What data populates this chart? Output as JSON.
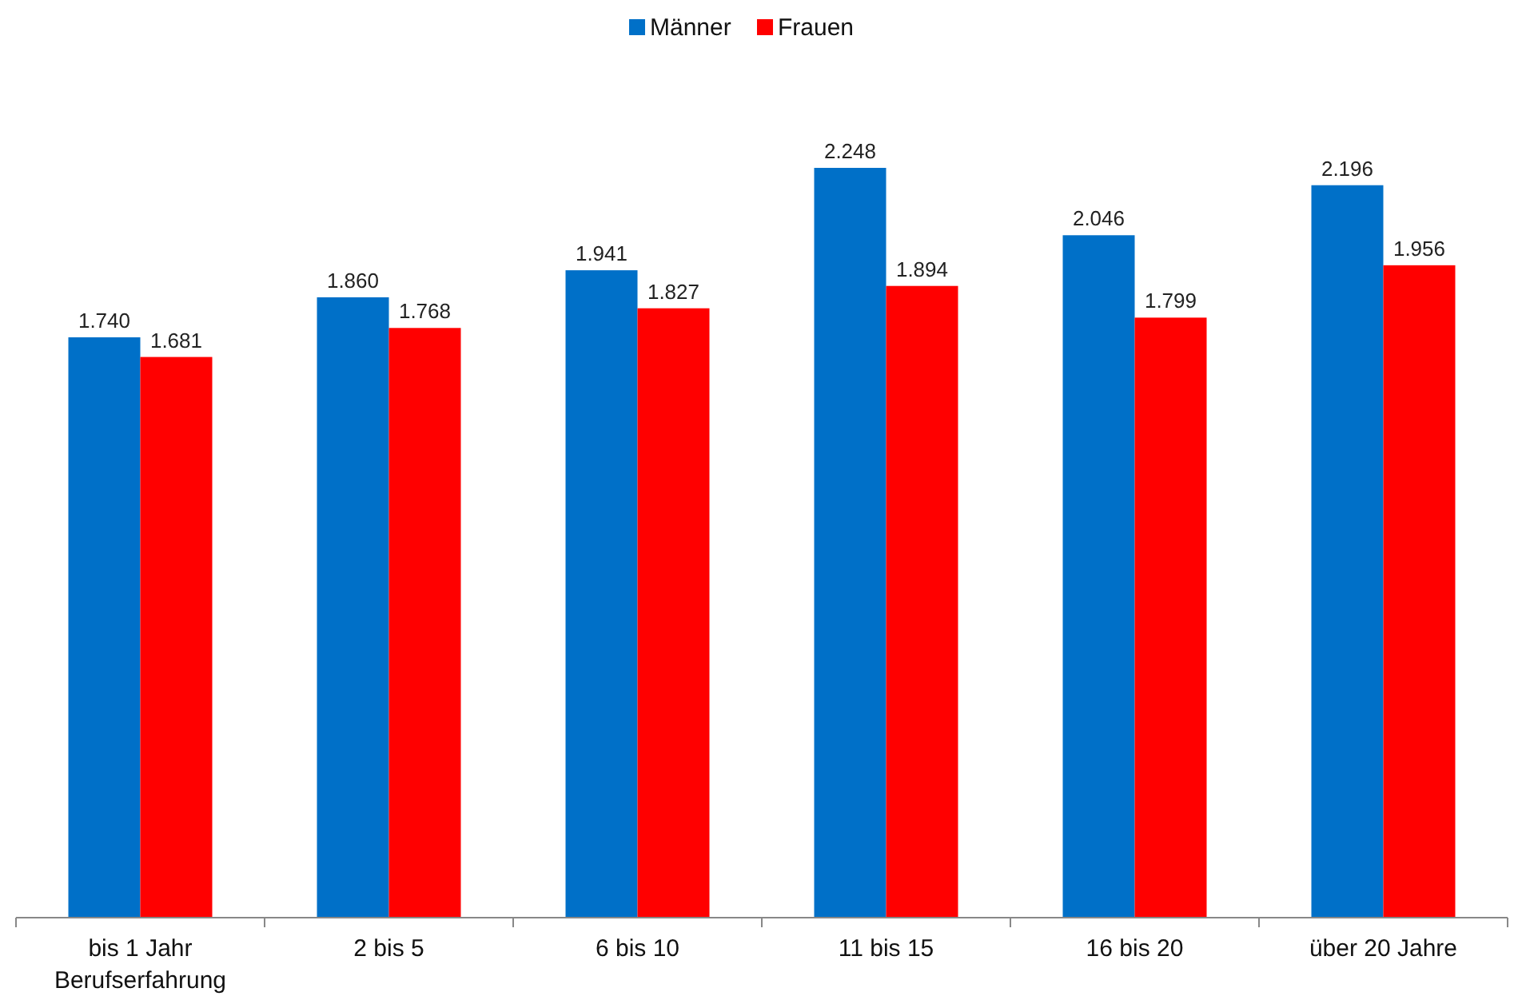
{
  "chart_data": {
    "type": "bar",
    "categories": [
      "bis 1 Jahr\nBerufserfahrung",
      "2 bis 5",
      "6 bis 10",
      "11 bis 15",
      "16 bis 20",
      "über 20 Jahre"
    ],
    "series": [
      {
        "name": "Männer",
        "color": "#0070c8",
        "values": [
          1740,
          1860,
          1941,
          2248,
          2046,
          2196
        ],
        "value_labels": [
          "1.740",
          "1.860",
          "1.941",
          "2.248",
          "2.046",
          "2.196"
        ]
      },
      {
        "name": "Frauen",
        "color": "#ff0000",
        "values": [
          1681,
          1768,
          1827,
          1894,
          1799,
          1956
        ],
        "value_labels": [
          "1.681",
          "1.768",
          "1.827",
          "1.894",
          "1.799",
          "1.956"
        ]
      }
    ],
    "legend": "top",
    "tick_labels": "x"
  }
}
